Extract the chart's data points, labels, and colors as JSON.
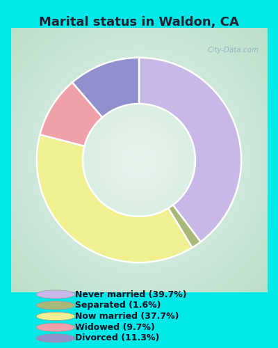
{
  "title": "Marital status in Waldon, CA",
  "slices": [
    {
      "label": "Never married (39.7%)",
      "value": 39.7,
      "color": "#c8b8e8"
    },
    {
      "label": "Separated (1.6%)",
      "value": 1.6,
      "color": "#a8b878"
    },
    {
      "label": "Now married (37.7%)",
      "value": 37.7,
      "color": "#f0f090"
    },
    {
      "label": "Widowed (9.7%)",
      "value": 9.7,
      "color": "#f0a0a8"
    },
    {
      "label": "Divorced (11.3%)",
      "value": 11.3,
      "color": "#9090cc"
    }
  ],
  "legend_colors": [
    "#c8b8e8",
    "#a8b878",
    "#f0f090",
    "#f0a0a8",
    "#9090cc"
  ],
  "legend_labels": [
    "Never married (39.7%)",
    "Separated (1.6%)",
    "Now married (37.7%)",
    "Widowed (9.7%)",
    "Divorced (11.3%)"
  ],
  "background_outer": "#00e8e8",
  "title_color": "#222233",
  "title_fontsize": 13,
  "watermark": "City-Data.com",
  "chart_bg_color": "#c8e8d8",
  "chart_center_color": "#e8f4ee"
}
